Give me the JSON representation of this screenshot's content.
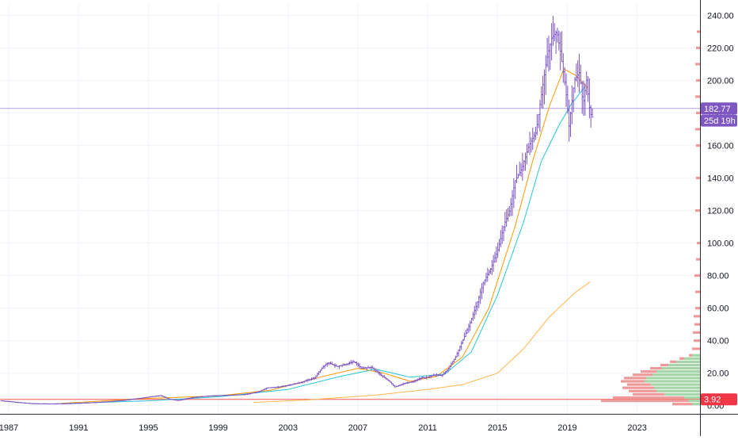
{
  "chart_data": {
    "type": "ohlc_bar",
    "symbol_series": "price",
    "grid": true,
    "x_axis": {
      "ticks": [
        "1987",
        "1991",
        "1995",
        "1999",
        "2003",
        "2007",
        "2011",
        "2015",
        "2019",
        "2023"
      ],
      "range": [
        1986.5,
        2026.6
      ]
    },
    "y_axis": {
      "ticks": [
        "0.00",
        "20.00",
        "40.00",
        "60.00",
        "80.00",
        "100.00",
        "120.00",
        "140.00",
        "160.00",
        "180.00",
        "200.00",
        "220.00",
        "240.00"
      ],
      "range": [
        -5,
        247
      ],
      "side": "right"
    },
    "price_series": {
      "color": "#7e57c2",
      "points": [
        {
          "x": 1986.6,
          "y": 3.0
        },
        {
          "x": 1987.5,
          "y": 2.0
        },
        {
          "x": 1988.5,
          "y": 1.2
        },
        {
          "x": 1989.5,
          "y": 1.1
        },
        {
          "x": 1990.5,
          "y": 1.3
        },
        {
          "x": 1991.5,
          "y": 1.7
        },
        {
          "x": 1992.5,
          "y": 2.3
        },
        {
          "x": 1993.5,
          "y": 3.2
        },
        {
          "x": 1994.5,
          "y": 4.5
        },
        {
          "x": 1995.2,
          "y": 5.6
        },
        {
          "x": 1995.7,
          "y": 6.2
        },
        {
          "x": 1996.2,
          "y": 4.0
        },
        {
          "x": 1996.7,
          "y": 3.2
        },
        {
          "x": 1997.5,
          "y": 5.0
        },
        {
          "x": 1998.5,
          "y": 6.0
        },
        {
          "x": 1999.5,
          "y": 6.4
        },
        {
          "x": 2000.5,
          "y": 6.8
        },
        {
          "x": 2001.3,
          "y": 8.5
        },
        {
          "x": 2001.8,
          "y": 11.0
        },
        {
          "x": 2002.5,
          "y": 11.5
        },
        {
          "x": 2003.2,
          "y": 13.0
        },
        {
          "x": 2003.8,
          "y": 14.5
        },
        {
          "x": 2004.5,
          "y": 17.0
        },
        {
          "x": 2005.0,
          "y": 24.0
        },
        {
          "x": 2005.3,
          "y": 26.5
        },
        {
          "x": 2005.8,
          "y": 24.0
        },
        {
          "x": 2006.3,
          "y": 25.5
        },
        {
          "x": 2006.8,
          "y": 27.0
        },
        {
          "x": 2007.2,
          "y": 23.0
        },
        {
          "x": 2007.8,
          "y": 23.5
        },
        {
          "x": 2008.3,
          "y": 19.0
        },
        {
          "x": 2008.8,
          "y": 15.0
        },
        {
          "x": 2009.1,
          "y": 11.5
        },
        {
          "x": 2009.6,
          "y": 13.5
        },
        {
          "x": 2010.2,
          "y": 15.0
        },
        {
          "x": 2010.6,
          "y": 17.0
        },
        {
          "x": 2011.0,
          "y": 17.5
        },
        {
          "x": 2011.4,
          "y": 19.0
        },
        {
          "x": 2011.8,
          "y": 18.5
        },
        {
          "x": 2012.2,
          "y": 23.0
        },
        {
          "x": 2012.6,
          "y": 30.0
        },
        {
          "x": 2013.0,
          "y": 40.0
        },
        {
          "x": 2013.4,
          "y": 50.0
        },
        {
          "x": 2013.8,
          "y": 62.0
        },
        {
          "x": 2014.2,
          "y": 76.0
        },
        {
          "x": 2014.6,
          "y": 84.0
        },
        {
          "x": 2015.0,
          "y": 95.0
        },
        {
          "x": 2015.4,
          "y": 112.0
        },
        {
          "x": 2015.7,
          "y": 120.0
        },
        {
          "x": 2016.0,
          "y": 138.0
        },
        {
          "x": 2016.4,
          "y": 146.0
        },
        {
          "x": 2016.8,
          "y": 160.0
        },
        {
          "x": 2017.2,
          "y": 168.0
        },
        {
          "x": 2017.5,
          "y": 190.0
        },
        {
          "x": 2017.8,
          "y": 212.0
        },
        {
          "x": 2018.1,
          "y": 226.0
        },
        {
          "x": 2018.4,
          "y": 230.0
        },
        {
          "x": 2018.6,
          "y": 218.0
        },
        {
          "x": 2018.9,
          "y": 195.0
        },
        {
          "x": 2019.1,
          "y": 172.0
        },
        {
          "x": 2019.4,
          "y": 200.0
        },
        {
          "x": 2019.7,
          "y": 205.0
        },
        {
          "x": 2019.9,
          "y": 185.0
        },
        {
          "x": 2020.1,
          "y": 200.0
        },
        {
          "x": 2020.3,
          "y": 180.0
        },
        {
          "x": 2020.5,
          "y": 176.0
        }
      ]
    },
    "moving_averages": [
      {
        "color": "#ff9800",
        "points": [
          {
            "x": 1990,
            "y": 1.5
          },
          {
            "x": 1995,
            "y": 4.5
          },
          {
            "x": 1999,
            "y": 6.0
          },
          {
            "x": 2002,
            "y": 9.5
          },
          {
            "x": 2005,
            "y": 18.0
          },
          {
            "x": 2007,
            "y": 23.0
          },
          {
            "x": 2008.5,
            "y": 20.0
          },
          {
            "x": 2010,
            "y": 15.0
          },
          {
            "x": 2011.5,
            "y": 18.0
          },
          {
            "x": 2013,
            "y": 30.0
          },
          {
            "x": 2014.5,
            "y": 60.0
          },
          {
            "x": 2016,
            "y": 110.0
          },
          {
            "x": 2017,
            "y": 150.0
          },
          {
            "x": 2018,
            "y": 185.0
          },
          {
            "x": 2018.8,
            "y": 207.0
          },
          {
            "x": 2019.5,
            "y": 203.0
          },
          {
            "x": 2020.2,
            "y": 195.0
          }
        ]
      },
      {
        "color": "#26c6da",
        "points": [
          {
            "x": 1990,
            "y": 1.3
          },
          {
            "x": 1995,
            "y": 3.0
          },
          {
            "x": 1999,
            "y": 5.5
          },
          {
            "x": 2003,
            "y": 10.0
          },
          {
            "x": 2006,
            "y": 18.0
          },
          {
            "x": 2008,
            "y": 22.5
          },
          {
            "x": 2010,
            "y": 17.5
          },
          {
            "x": 2012,
            "y": 19.5
          },
          {
            "x": 2013.5,
            "y": 33.0
          },
          {
            "x": 2015,
            "y": 68.0
          },
          {
            "x": 2016.5,
            "y": 113.0
          },
          {
            "x": 2017.5,
            "y": 150.0
          },
          {
            "x": 2018.5,
            "y": 172.0
          },
          {
            "x": 2019.2,
            "y": 185.0
          },
          {
            "x": 2020.0,
            "y": 196.0
          }
        ]
      },
      {
        "color": "#ffb74d",
        "points": [
          {
            "x": 2001,
            "y": 2.0
          },
          {
            "x": 2004,
            "y": 3.5
          },
          {
            "x": 2008,
            "y": 6.5
          },
          {
            "x": 2011,
            "y": 10.0
          },
          {
            "x": 2013,
            "y": 13.0
          },
          {
            "x": 2015,
            "y": 20.0
          },
          {
            "x": 2016.5,
            "y": 35.0
          },
          {
            "x": 2018,
            "y": 55.0
          },
          {
            "x": 2019.5,
            "y": 70.0
          },
          {
            "x": 2020.3,
            "y": 76.0
          }
        ]
      }
    ],
    "horizontal_lines": [
      {
        "y": 182.77,
        "color": "#b39ddb"
      },
      {
        "y": 3.92,
        "color": "#ef5350"
      }
    ],
    "price_labels": [
      {
        "text": "182.77",
        "y": 182.77,
        "color": "#7e57c2"
      },
      {
        "text": "25d 19h",
        "y": 175.3,
        "color": "#7e57c2"
      },
      {
        "text": "3.92",
        "y": 3.92,
        "color": "#f23645"
      }
    ],
    "volume_profile": {
      "up_color": "#a5d6a7",
      "down_color": "#ef9a9a",
      "rows": [
        {
          "y": 1,
          "up": 10,
          "down": 25
        },
        {
          "y": 3,
          "up": 15,
          "down": 110
        },
        {
          "y": 5,
          "up": 20,
          "down": 90
        },
        {
          "y": 7,
          "up": 45,
          "down": 40
        },
        {
          "y": 9,
          "up": 55,
          "down": 35
        },
        {
          "y": 11,
          "up": 58,
          "down": 40
        },
        {
          "y": 13,
          "up": 62,
          "down": 30
        },
        {
          "y": 15,
          "up": 70,
          "down": 30
        },
        {
          "y": 17,
          "up": 68,
          "down": 28
        },
        {
          "y": 19,
          "up": 60,
          "down": 25
        },
        {
          "y": 21,
          "up": 55,
          "down": 20
        },
        {
          "y": 23,
          "up": 48,
          "down": 15
        },
        {
          "y": 25,
          "up": 40,
          "down": 10
        },
        {
          "y": 27,
          "up": 30,
          "down": 8
        },
        {
          "y": 29,
          "up": 20,
          "down": 6
        },
        {
          "y": 31,
          "up": 10,
          "down": 4
        },
        {
          "y": 35,
          "up": 0,
          "down": 10
        },
        {
          "y": 40,
          "up": 0,
          "down": 8
        },
        {
          "y": 45,
          "up": 0,
          "down": 9
        },
        {
          "y": 50,
          "up": 0,
          "down": 7
        },
        {
          "y": 55,
          "up": 0,
          "down": 8
        },
        {
          "y": 60,
          "up": 0,
          "down": 6
        },
        {
          "y": 70,
          "up": 0,
          "down": 6
        },
        {
          "y": 80,
          "up": 0,
          "down": 7
        },
        {
          "y": 90,
          "up": 0,
          "down": 5
        },
        {
          "y": 100,
          "up": 0,
          "down": 4
        },
        {
          "y": 120,
          "up": 0,
          "down": 6
        },
        {
          "y": 140,
          "up": 0,
          "down": 5
        },
        {
          "y": 160,
          "up": 0,
          "down": 5
        },
        {
          "y": 170,
          "up": 0,
          "down": 6
        },
        {
          "y": 180,
          "up": 0,
          "down": 5
        },
        {
          "y": 190,
          "up": 0,
          "down": 6
        },
        {
          "y": 200,
          "up": 0,
          "down": 5
        },
        {
          "y": 210,
          "up": 0,
          "down": 6
        },
        {
          "y": 220,
          "up": 0,
          "down": 5
        },
        {
          "y": 230,
          "up": 0,
          "down": 4
        }
      ]
    }
  }
}
